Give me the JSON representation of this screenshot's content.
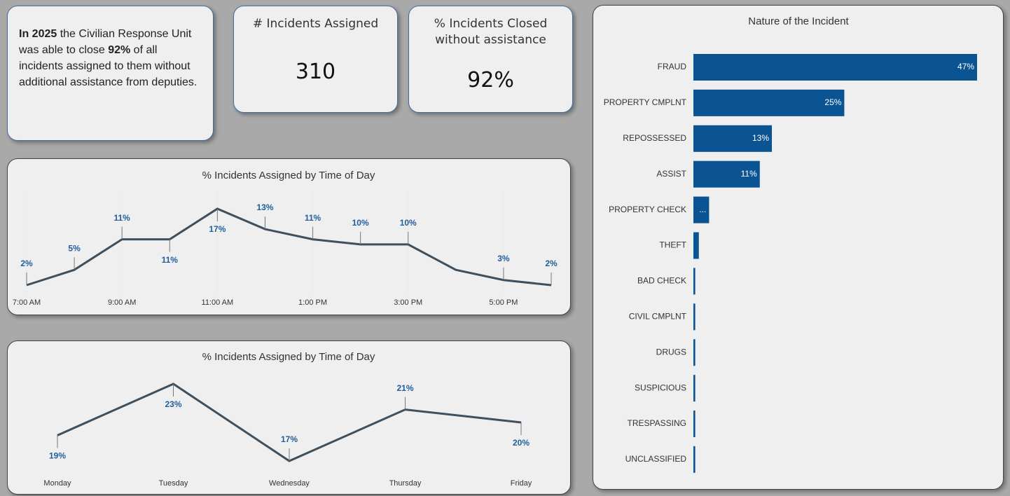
{
  "summary": {
    "parts": [
      "In 2025",
      " the Civilian Response Unit was able to close ",
      "92%",
      " of all incidents assigned to them without additional assistance from deputies."
    ]
  },
  "kpis": [
    {
      "title": "# Incidents Assigned",
      "value": "310"
    },
    {
      "title": "% Incidents Closed without assistance",
      "value": "92%"
    }
  ],
  "chart_data": [
    {
      "type": "line",
      "title": "% Incidents Assigned by Time of Day",
      "color": "#3e4f5e",
      "categories": [
        "7:00 AM",
        null,
        "9:00 AM",
        null,
        "11:00 AM",
        null,
        "1:00 PM",
        null,
        "3:00 PM",
        null,
        "5:00 PM",
        null
      ],
      "values": [
        2,
        5,
        11,
        11,
        17,
        13,
        11,
        10,
        10,
        5,
        3,
        2
      ],
      "value_labels": [
        "2%",
        "5%",
        "11%",
        "11%",
        "17%",
        "13%",
        "11%",
        "10%",
        "10%",
        null,
        "3%",
        "2%"
      ]
    },
    {
      "type": "line",
      "title": "% Incidents Assigned by Time of Day",
      "color": "#3e4f5e",
      "categories": [
        "Monday",
        "Tuesday",
        "Wednesday",
        "Thursday",
        "Friday"
      ],
      "values": [
        19,
        23,
        17,
        21,
        20
      ],
      "value_labels": [
        "19%",
        "23%",
        "17%",
        "21%",
        "20%"
      ]
    },
    {
      "type": "bar",
      "title": "Nature of the Incident",
      "color": "#0b5494",
      "categories": [
        "FRAUD",
        "PROPERTY CMPLNT",
        "REPOSSESSED",
        "ASSIST",
        "PROPERTY CHECK",
        "THEFT",
        "BAD CHECK",
        "CIVIL CMPLNT",
        "DRUGS",
        "SUSPICIOUS",
        "TRESPASSING",
        "UNCLASSIFIED"
      ],
      "values": [
        47,
        25,
        13,
        11,
        2.6,
        0.9,
        0.3,
        0.3,
        0.3,
        0.3,
        0.3,
        0.3
      ],
      "value_labels": [
        "47%",
        "25%",
        "13%",
        "11%",
        "...",
        null,
        null,
        null,
        null,
        null,
        null,
        null
      ]
    }
  ]
}
